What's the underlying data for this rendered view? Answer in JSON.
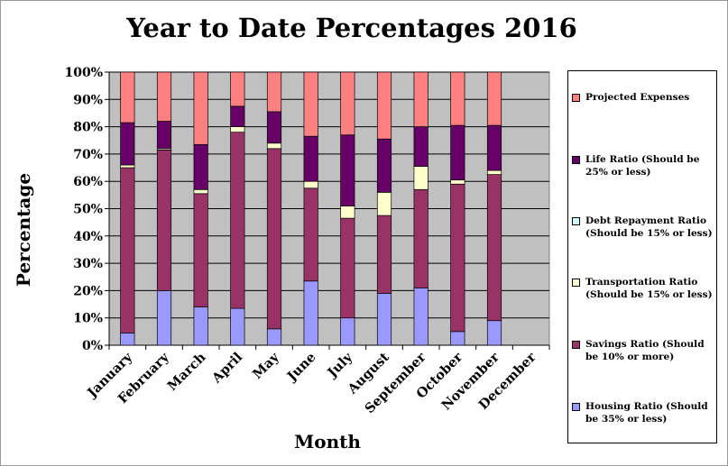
{
  "chart_data": {
    "type": "bar",
    "stacked": true,
    "title": "Year to Date Percentages 2016",
    "xlabel": "Month",
    "ylabel": "Percentage",
    "ylim": [
      0,
      100
    ],
    "y_ticks": [
      "0%",
      "10%",
      "20%",
      "30%",
      "40%",
      "50%",
      "60%",
      "70%",
      "80%",
      "90%",
      "100%"
    ],
    "grid": true,
    "legend_position": "right",
    "plot_background": "#c0c0c0",
    "categories": [
      "January",
      "February",
      "March",
      "April",
      "May",
      "June",
      "July",
      "August",
      "September",
      "October",
      "November",
      "December"
    ],
    "series": [
      {
        "name": "Housing Ratio (Should be 35% or less)",
        "color": "#9999ff",
        "values": [
          4.5,
          20,
          14,
          13.5,
          6,
          23.5,
          10,
          19,
          21,
          5,
          9,
          null
        ]
      },
      {
        "name": "Savings Ratio (Should be 10% or more)",
        "color": "#993366",
        "values": [
          60.5,
          51.5,
          41.5,
          64.5,
          66,
          34,
          36.5,
          28.5,
          36,
          54,
          53.5,
          null
        ]
      },
      {
        "name": "Transportation Ratio (Should be 15% or less)",
        "color": "#ffffcc",
        "values": [
          1,
          0.5,
          1.5,
          2,
          2,
          2.5,
          4.5,
          8.5,
          8.5,
          1.5,
          1.5,
          null
        ]
      },
      {
        "name": "Debt Repayment Ratio (Should be 15% or less)",
        "color": "#ccffff",
        "values": [
          0,
          0,
          0,
          0,
          0,
          0,
          0,
          0,
          0,
          0,
          0,
          null
        ]
      },
      {
        "name": "Life Ratio (Should be 25% or less)",
        "color": "#660066",
        "values": [
          15.5,
          10,
          16.5,
          7.5,
          11.5,
          16.5,
          26,
          19.5,
          14.5,
          20,
          16.5,
          null
        ]
      },
      {
        "name": "Projected Expenses",
        "color": "#ff8080",
        "values": [
          18.5,
          18,
          26.5,
          12.5,
          14.5,
          23.5,
          23,
          24.5,
          20,
          19.5,
          19.5,
          null
        ]
      }
    ],
    "legend_order": [
      5,
      4,
      3,
      2,
      1,
      0
    ]
  }
}
